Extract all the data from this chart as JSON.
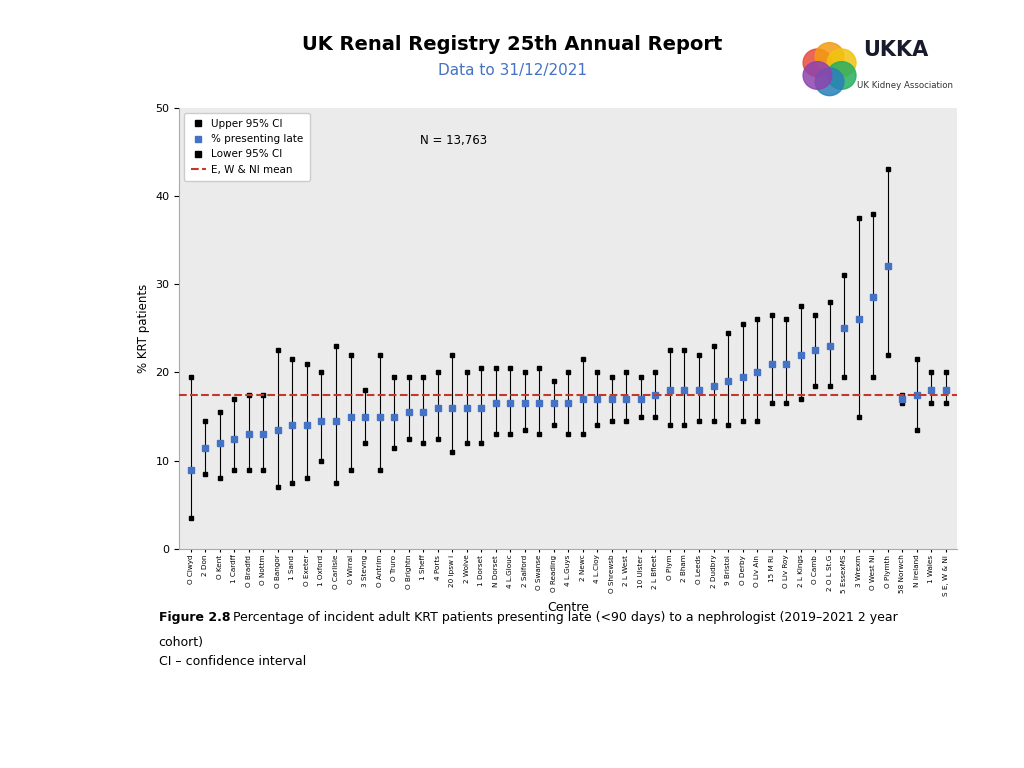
{
  "title": "UK Renal Registry 25th Annual Report",
  "subtitle": "Data to 31/12/2021",
  "n_label": "N = 13,763",
  "mean_line": 17.5,
  "ylabel": "% KRT patients",
  "xlabel": "Centre",
  "ylim": [
    0,
    50
  ],
  "yticks": [
    0,
    10,
    20,
    30,
    40,
    50
  ],
  "mean_color": "#c0392b",
  "bar_color": "#4472c4",
  "centres": [
    "O Clwyd",
    "2 Don",
    "O Kent",
    "1 Cardff",
    "O Bradfd",
    "O Nottm",
    "O Bangor",
    "1 Sand",
    "O Exeter",
    "1 Oxford",
    "O Carlisle",
    "O Wirral",
    "3 Stevng",
    "O Antrim",
    "O Truro",
    "O Brightn",
    "1 Sheff",
    "4 Ports",
    "20 Ipsw i",
    "2 Wolve",
    "1 Dorset",
    "N Dorset",
    "4 L.Glouc",
    "2 Salford",
    "O Swanse",
    "O Reading",
    "4 L.Guys",
    "2 Newc",
    "4 L.Cloy",
    "O Shrewsb",
    "2 L West",
    "10 Ulster",
    "2 L Bfleet",
    "O Plym",
    "2 Bham",
    "O Leeds",
    "2 Dudbry",
    "9 Bristol",
    "O Derby",
    "O Liv Ain",
    "15 M Ri",
    "O Liv Roy",
    "2 L Kings",
    "O Camb",
    "2 O L St.G",
    "5 EssexMS",
    "3 Wrexm",
    "O West Ni",
    "O Plymth",
    "58 Norwch",
    "N Ireland",
    "1 Wales",
    "S E, W & Ni"
  ],
  "values": [
    9.0,
    11.5,
    12.0,
    12.5,
    13.0,
    13.0,
    13.5,
    14.0,
    14.0,
    14.5,
    14.5,
    15.0,
    15.0,
    15.0,
    15.0,
    15.5,
    15.5,
    16.0,
    16.0,
    16.0,
    16.0,
    16.5,
    16.5,
    16.5,
    16.5,
    16.5,
    16.5,
    17.0,
    17.0,
    17.0,
    17.0,
    17.0,
    17.5,
    18.0,
    18.0,
    18.0,
    18.5,
    19.0,
    19.5,
    20.0,
    21.0,
    21.0,
    22.0,
    22.5,
    23.0,
    25.0,
    26.0,
    28.5,
    32.0,
    17.0,
    17.5,
    18.0,
    18.0
  ],
  "upper_ci": [
    19.5,
    14.5,
    15.5,
    17.0,
    17.5,
    17.5,
    22.5,
    21.5,
    21.0,
    20.0,
    23.0,
    22.0,
    18.0,
    22.0,
    19.5,
    19.5,
    19.5,
    20.0,
    22.0,
    20.0,
    20.5,
    20.5,
    20.5,
    20.0,
    20.5,
    19.0,
    20.0,
    21.5,
    20.0,
    19.5,
    20.0,
    19.5,
    20.0,
    22.5,
    22.5,
    22.0,
    23.0,
    24.5,
    25.5,
    26.0,
    26.5,
    26.0,
    27.5,
    26.5,
    28.0,
    31.0,
    37.5,
    38.0,
    43.0,
    17.5,
    21.5,
    20.0,
    20.0
  ],
  "lower_ci": [
    3.5,
    8.5,
    8.0,
    9.0,
    9.0,
    9.0,
    7.0,
    7.5,
    8.0,
    10.0,
    7.5,
    9.0,
    12.0,
    9.0,
    11.5,
    12.5,
    12.0,
    12.5,
    11.0,
    12.0,
    12.0,
    13.0,
    13.0,
    13.5,
    13.0,
    14.0,
    13.0,
    13.0,
    14.0,
    14.5,
    14.5,
    15.0,
    15.0,
    14.0,
    14.0,
    14.5,
    14.5,
    14.0,
    14.5,
    14.5,
    16.5,
    16.5,
    17.0,
    18.5,
    18.5,
    19.5,
    15.0,
    19.5,
    22.0,
    16.5,
    13.5,
    16.5,
    16.5
  ],
  "bg_color": "#ebebeb",
  "fig_color": "#ffffff"
}
